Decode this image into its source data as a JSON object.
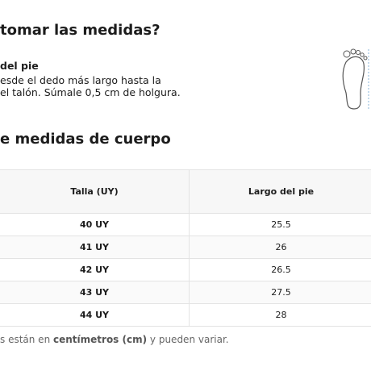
{
  "heading": "tomar las medidas?",
  "instruction": {
    "title": "del pie",
    "lines": [
      "esde el dedo más largo hasta la",
      "el talón. Súmale 0,5 cm de holgura."
    ]
  },
  "table_title": "e medidas de cuerpo",
  "table": {
    "headers": [
      "Talla (UY)",
      "Largo del pie"
    ],
    "rows": [
      [
        "40 UY",
        "25.5"
      ],
      [
        "41 UY",
        "26"
      ],
      [
        "42 UY",
        "26.5"
      ],
      [
        "43 UY",
        "27.5"
      ],
      [
        "44 UY",
        "28"
      ]
    ]
  },
  "note": {
    "before": "s están en",
    "bold": "centímetros (cm)",
    "after": "y pueden variar."
  }
}
